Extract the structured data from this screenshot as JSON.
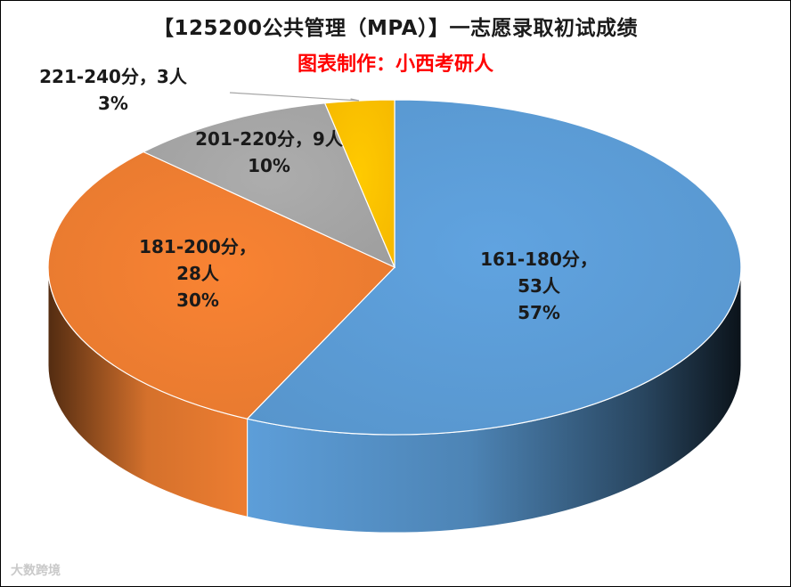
{
  "chart_data": {
    "type": "pie",
    "title": "【125200公共管理（MPA）】一志愿录取初试成绩",
    "subtitle": "图表制作：小西考研人",
    "slices": [
      {
        "name": "161-180分",
        "count_label": "53人",
        "percent_label": "57%",
        "value": 53,
        "color": "#5b9bd5"
      },
      {
        "name": "181-200分",
        "count_label": "28人",
        "percent_label": "30%",
        "value": 28,
        "color": "#ed7d31"
      },
      {
        "name": "201-220分",
        "count_label": "9人",
        "percent_label": "10%",
        "value": 9,
        "color": "#a5a5a5"
      },
      {
        "name": "221-240分",
        "count_label": "3人",
        "percent_label": "3%",
        "value": 3,
        "color": "#ffc000"
      }
    ]
  },
  "colors": {
    "subtitle": "#ff0000",
    "border": "#000000"
  },
  "watermark": "大数跨境"
}
